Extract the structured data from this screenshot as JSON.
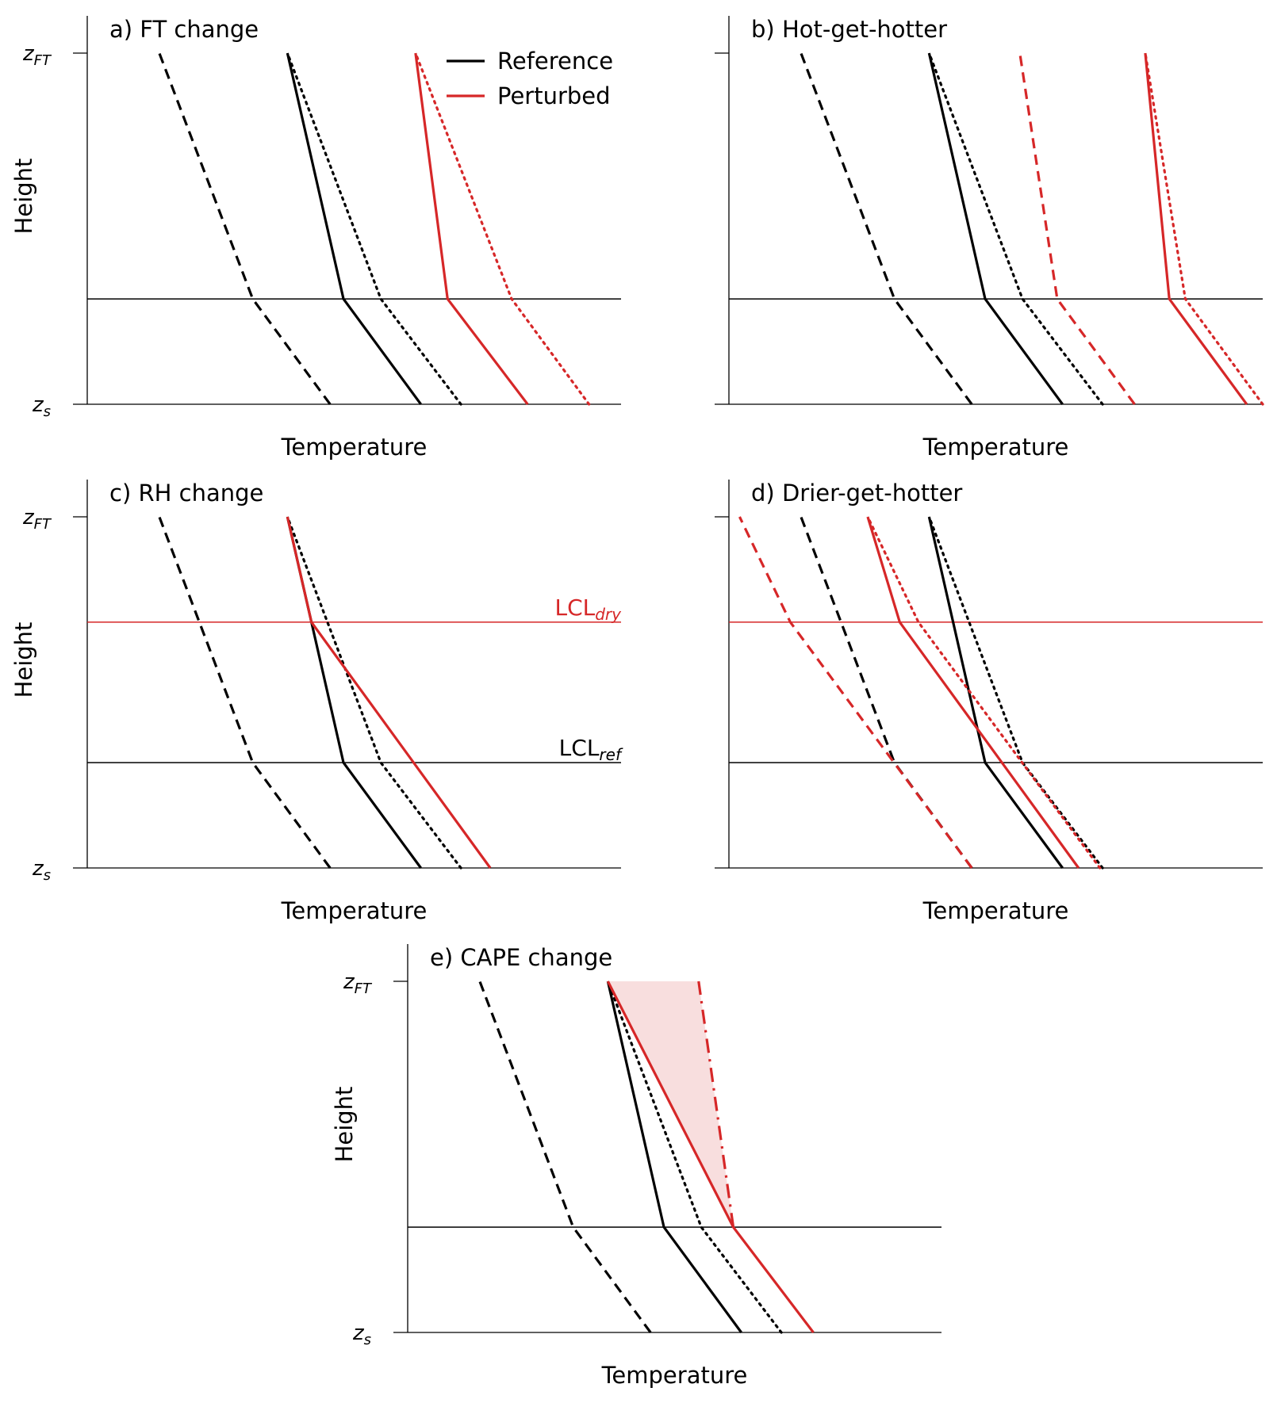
{
  "figure": {
    "colors": {
      "reference": "#000000",
      "perturbed": "#d62728",
      "cape_fill": "#f8dede"
    }
  },
  "chart_data": [
    {
      "panel": "a",
      "type": "line",
      "title": "a) FT change",
      "xlabel": "Temperature",
      "ylabel": "Height",
      "y_ticks": [
        {
          "main": "z",
          "sub": "FT",
          "value": 1.0
        },
        {
          "main": "z",
          "sub": "s",
          "value": 0.0
        }
      ],
      "xlim": [
        0,
        1
      ],
      "ylim": [
        0,
        1
      ],
      "legend": {
        "position": "top-right",
        "entries": [
          {
            "label": "Reference",
            "color": "#000000"
          },
          {
            "label": "Perturbed",
            "color": "#d62728"
          }
        ]
      },
      "hlines": [
        {
          "y": 0.3,
          "color": "#000000",
          "label_main": "",
          "label_sub": ""
        }
      ],
      "series": [
        {
          "name": "reference-dashed",
          "color": "#000000",
          "style": "dashed",
          "x": [
            0.455,
            0.31,
            0.135
          ],
          "y": [
            0,
            0.3,
            1
          ]
        },
        {
          "name": "reference-solid",
          "color": "#000000",
          "style": "solid",
          "x": [
            0.625,
            0.48,
            0.375
          ],
          "y": [
            0,
            0.3,
            1
          ]
        },
        {
          "name": "reference-dotted",
          "color": "#000000",
          "style": "dotted",
          "x": [
            0.7,
            0.55,
            0.375
          ],
          "y": [
            0,
            0.3,
            1
          ]
        },
        {
          "name": "perturbed-solid",
          "color": "#d62728",
          "style": "solid",
          "x": [
            0.825,
            0.675,
            0.615
          ],
          "y": [
            0,
            0.3,
            1
          ]
        },
        {
          "name": "perturbed-dotted",
          "color": "#d62728",
          "style": "dotted",
          "x": [
            0.94,
            0.795,
            0.615
          ],
          "y": [
            0,
            0.3,
            1
          ]
        }
      ]
    },
    {
      "panel": "b",
      "type": "line",
      "title": "b) Hot-get-hotter",
      "xlabel": "Temperature",
      "ylabel": "",
      "y_ticks": [],
      "xlim": [
        0,
        1
      ],
      "ylim": [
        0,
        1
      ],
      "hlines": [
        {
          "y": 0.3,
          "color": "#000000",
          "label_main": "",
          "label_sub": ""
        }
      ],
      "series": [
        {
          "name": "reference-dashed",
          "color": "#000000",
          "style": "dashed",
          "x": [
            0.455,
            0.31,
            0.135
          ],
          "y": [
            0,
            0.3,
            1
          ]
        },
        {
          "name": "reference-solid",
          "color": "#000000",
          "style": "solid",
          "x": [
            0.625,
            0.48,
            0.375
          ],
          "y": [
            0,
            0.3,
            1
          ]
        },
        {
          "name": "reference-dotted",
          "color": "#000000",
          "style": "dotted",
          "x": [
            0.7,
            0.55,
            0.375
          ],
          "y": [
            0,
            0.3,
            1
          ]
        },
        {
          "name": "perturbed-dashed",
          "color": "#d62728",
          "style": "dashed",
          "x": [
            0.76,
            0.615,
            0.545
          ],
          "y": [
            0,
            0.3,
            1
          ]
        },
        {
          "name": "perturbed-solid",
          "color": "#d62728",
          "style": "solid",
          "x": [
            0.97,
            0.825,
            0.78
          ],
          "y": [
            0,
            0.3,
            1
          ]
        },
        {
          "name": "perturbed-dotted",
          "color": "#d62728",
          "style": "dotted",
          "x": [
            1.0,
            0.855,
            0.78
          ],
          "y": [
            0,
            0.3,
            1
          ]
        }
      ]
    },
    {
      "panel": "c",
      "type": "line",
      "title": "c) RH change",
      "xlabel": "Temperature",
      "ylabel": "Height",
      "y_ticks": [
        {
          "main": "z",
          "sub": "FT",
          "value": 1.0
        },
        {
          "main": "z",
          "sub": "s",
          "value": 0.0
        }
      ],
      "xlim": [
        0,
        1
      ],
      "ylim": [
        0,
        1
      ],
      "hlines": [
        {
          "y": 0.3,
          "color": "#000000",
          "label_main": "LCL",
          "label_sub": "ref"
        },
        {
          "y": 0.7,
          "color": "#d62728",
          "label_main": "LCL",
          "label_sub": "dry"
        }
      ],
      "series": [
        {
          "name": "reference-dashed",
          "color": "#000000",
          "style": "dashed",
          "x": [
            0.455,
            0.31,
            0.135
          ],
          "y": [
            0,
            0.3,
            1
          ]
        },
        {
          "name": "reference-solid",
          "color": "#000000",
          "style": "solid",
          "x": [
            0.625,
            0.48,
            0.42,
            0.375
          ],
          "y": [
            0,
            0.3,
            0.7,
            1
          ]
        },
        {
          "name": "reference-dotted",
          "color": "#000000",
          "style": "dotted",
          "x": [
            0.7,
            0.55,
            0.375
          ],
          "y": [
            0,
            0.3,
            1
          ]
        },
        {
          "name": "perturbed-solid",
          "color": "#d62728",
          "style": "solid",
          "x": [
            0.755,
            0.42,
            0.375
          ],
          "y": [
            0,
            0.7,
            1
          ]
        }
      ]
    },
    {
      "panel": "d",
      "type": "line",
      "title": "d) Drier-get-hotter",
      "xlabel": "Temperature",
      "ylabel": "",
      "y_ticks": [],
      "xlim": [
        0,
        1
      ],
      "ylim": [
        0,
        1
      ],
      "hlines": [
        {
          "y": 0.3,
          "color": "#000000",
          "label_main": "",
          "label_sub": ""
        },
        {
          "y": 0.7,
          "color": "#d62728",
          "label_main": "",
          "label_sub": ""
        }
      ],
      "series": [
        {
          "name": "reference-dashed",
          "color": "#000000",
          "style": "dashed",
          "x": [
            0.455,
            0.31,
            0.135
          ],
          "y": [
            0,
            0.3,
            1
          ]
        },
        {
          "name": "reference-solid",
          "color": "#000000",
          "style": "solid",
          "x": [
            0.625,
            0.48,
            0.375
          ],
          "y": [
            0,
            0.3,
            1
          ]
        },
        {
          "name": "reference-dotted",
          "color": "#000000",
          "style": "dotted",
          "x": [
            0.7,
            0.55,
            0.375
          ],
          "y": [
            0,
            0.3,
            1
          ]
        },
        {
          "name": "perturbed-dashed",
          "color": "#d62728",
          "style": "dashed",
          "x": [
            0.455,
            0.115,
            0.02
          ],
          "y": [
            0,
            0.7,
            1
          ]
        },
        {
          "name": "perturbed-solid",
          "color": "#d62728",
          "style": "solid",
          "x": [
            0.655,
            0.32,
            0.26
          ],
          "y": [
            0,
            0.7,
            1
          ]
        },
        {
          "name": "perturbed-dotted",
          "color": "#d62728",
          "style": "dotted",
          "x": [
            0.695,
            0.355,
            0.26
          ],
          "y": [
            0,
            0.7,
            1
          ]
        }
      ]
    },
    {
      "panel": "e",
      "type": "line",
      "title": "e) CAPE change",
      "xlabel": "Temperature",
      "ylabel": "Height",
      "y_ticks": [
        {
          "main": "z",
          "sub": "FT",
          "value": 1.0
        },
        {
          "main": "z",
          "sub": "s",
          "value": 0.0
        }
      ],
      "xlim": [
        0,
        1
      ],
      "ylim": [
        0,
        1
      ],
      "hlines": [
        {
          "y": 0.3,
          "color": "#000000",
          "label_main": "",
          "label_sub": ""
        }
      ],
      "shaded_region": {
        "color": "#f8dede",
        "x": [
          0.375,
          0.545,
          0.61
        ],
        "y": [
          1,
          1,
          0.3
        ]
      },
      "series": [
        {
          "name": "reference-dashed",
          "color": "#000000",
          "style": "dashed",
          "x": [
            0.455,
            0.31,
            0.135
          ],
          "y": [
            0,
            0.3,
            1
          ]
        },
        {
          "name": "reference-solid",
          "color": "#000000",
          "style": "solid",
          "x": [
            0.625,
            0.48,
            0.375
          ],
          "y": [
            0,
            0.3,
            1
          ]
        },
        {
          "name": "reference-dotted",
          "color": "#000000",
          "style": "dotted",
          "x": [
            0.7,
            0.55,
            0.375
          ],
          "y": [
            0,
            0.3,
            1
          ]
        },
        {
          "name": "perturbed-solid",
          "color": "#d62728",
          "style": "solid",
          "x": [
            0.76,
            0.61,
            0.375
          ],
          "y": [
            0,
            0.3,
            1
          ]
        },
        {
          "name": "perturbed-dashdot",
          "color": "#d62728",
          "style": "dashdot",
          "x": [
            0.61,
            0.545
          ],
          "y": [
            0.3,
            1
          ]
        }
      ]
    }
  ]
}
